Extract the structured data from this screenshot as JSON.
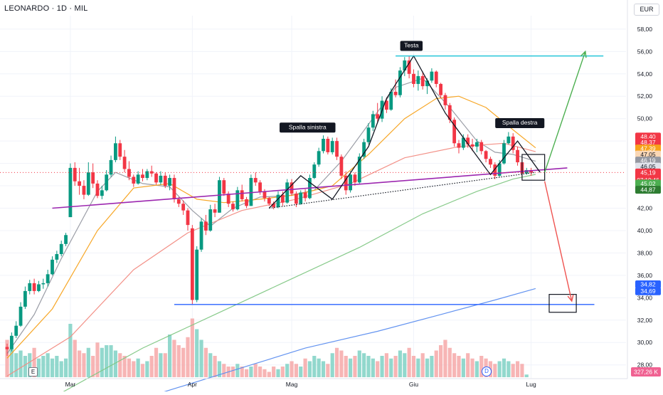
{
  "header": {
    "symbol_title": "LEONARDO · 1D · MIL",
    "currency": "EUR"
  },
  "badges": {
    "earnings": "E",
    "dividend": "D",
    "volume_scale": "E"
  },
  "chart_data": {
    "type": "candlestick",
    "ylim": [
      26.9,
      59.2
    ],
    "y_ticks": [
      28,
      30,
      32,
      34,
      36,
      38,
      40,
      42,
      44,
      46,
      48,
      50,
      52,
      54,
      56,
      58
    ],
    "x_ticks": [
      {
        "label": "Mar",
        "bar": 14
      },
      {
        "label": "Apr",
        "bar": 41
      },
      {
        "label": "Mag",
        "bar": 63
      },
      {
        "label": "Giu",
        "bar": 90
      },
      {
        "label": "Lug",
        "bar": 116
      }
    ],
    "candles": [
      [
        29.6,
        29.9,
        28.8,
        29.4
      ],
      [
        29.4,
        30.9,
        29.2,
        30.6
      ],
      [
        30.6,
        31.9,
        30.4,
        31.5
      ],
      [
        31.5,
        33.6,
        31.4,
        33.2
      ],
      [
        33.2,
        35.0,
        33.0,
        34.6
      ],
      [
        34.6,
        35.6,
        34.3,
        35.3
      ],
      [
        35.3,
        35.7,
        34.3,
        34.6
      ],
      [
        34.6,
        35.5,
        34.5,
        35.2
      ],
      [
        35.2,
        35.7,
        34.8,
        35.3
      ],
      [
        35.3,
        36.5,
        35.0,
        36.1
      ],
      [
        36.1,
        37.7,
        36.0,
        37.4
      ],
      [
        37.4,
        38.2,
        37.1,
        37.9
      ],
      [
        37.9,
        39.1,
        37.7,
        38.8
      ],
      [
        38.8,
        39.8,
        38.6,
        39.6
      ],
      [
        41.2,
        46.0,
        41.5,
        45.6
      ],
      [
        45.6,
        46.1,
        44.0,
        44.4
      ],
      [
        44.4,
        45.6,
        43.2,
        44.0
      ],
      [
        44.0,
        44.5,
        42.8,
        43.2
      ],
      [
        43.2,
        46.1,
        43.1,
        45.2
      ],
      [
        45.2,
        46.0,
        43.8,
        44.2
      ],
      [
        44.2,
        44.5,
        42.9,
        43.1
      ],
      [
        43.1,
        44.0,
        42.8,
        43.6
      ],
      [
        43.6,
        45.4,
        43.5,
        45.0
      ],
      [
        45.0,
        46.7,
        44.8,
        46.3
      ],
      [
        46.3,
        48.4,
        46.1,
        47.8
      ],
      [
        47.8,
        48.1,
        46.3,
        46.6
      ],
      [
        46.6,
        47.2,
        45.2,
        45.5
      ],
      [
        45.5,
        46.2,
        44.5,
        44.8
      ],
      [
        44.8,
        45.0,
        43.9,
        44.2
      ],
      [
        44.2,
        45.3,
        44.1,
        45.0
      ],
      [
        45.0,
        45.5,
        44.4,
        44.7
      ],
      [
        44.7,
        45.5,
        44.5,
        45.3
      ],
      [
        45.3,
        45.8,
        44.8,
        45.1
      ],
      [
        45.1,
        45.2,
        44.1,
        44.3
      ],
      [
        44.3,
        45.3,
        44.1,
        44.9
      ],
      [
        44.9,
        45.2,
        43.8,
        44.0
      ],
      [
        44.0,
        45.0,
        43.6,
        44.7
      ],
      [
        44.7,
        45.0,
        42.5,
        42.8
      ],
      [
        42.8,
        43.0,
        42.1,
        42.4
      ],
      [
        42.4,
        42.7,
        41.4,
        41.8
      ],
      [
        41.8,
        42.0,
        40.0,
        40.5
      ],
      [
        40.2,
        40.5,
        33.4,
        33.8
      ],
      [
        33.8,
        38.6,
        33.6,
        38.3
      ],
      [
        38.3,
        41.1,
        38.1,
        40.8
      ],
      [
        40.8,
        41.4,
        39.6,
        40.0
      ],
      [
        40.0,
        42.3,
        39.9,
        41.9
      ],
      [
        41.9,
        42.4,
        41.2,
        41.6
      ],
      [
        41.6,
        44.8,
        41.6,
        44.5
      ],
      [
        44.5,
        44.7,
        43.1,
        43.3
      ],
      [
        43.3,
        43.5,
        42.1,
        42.4
      ],
      [
        42.4,
        42.6,
        41.7,
        41.9
      ],
      [
        41.9,
        43.9,
        41.8,
        43.6
      ],
      [
        43.6,
        44.1,
        42.6,
        42.8
      ],
      [
        42.8,
        43.0,
        42.0,
        42.2
      ],
      [
        42.2,
        45.0,
        42.2,
        44.7
      ],
      [
        44.7,
        45.2,
        44.0,
        44.3
      ],
      [
        44.3,
        44.5,
        43.2,
        43.5
      ],
      [
        43.5,
        43.7,
        42.6,
        42.9
      ],
      [
        42.9,
        43.0,
        42.2,
        42.4
      ],
      [
        42.4,
        42.6,
        41.9,
        42.1
      ],
      [
        42.1,
        43.5,
        42.0,
        43.2
      ],
      [
        43.2,
        43.5,
        42.2,
        42.5
      ],
      [
        42.5,
        44.6,
        42.4,
        44.3
      ],
      [
        44.3,
        44.6,
        43.1,
        43.3
      ],
      [
        43.3,
        43.5,
        42.1,
        42.4
      ],
      [
        42.4,
        43.6,
        42.3,
        43.4
      ],
      [
        43.4,
        43.7,
        42.6,
        42.9
      ],
      [
        42.9,
        45.0,
        42.8,
        44.7
      ],
      [
        44.7,
        46.1,
        44.6,
        45.9
      ],
      [
        45.9,
        47.4,
        45.7,
        47.1
      ],
      [
        47.1,
        48.5,
        46.9,
        48.2
      ],
      [
        48.2,
        48.4,
        46.8,
        47.0
      ],
      [
        47.0,
        48.3,
        46.8,
        48.0
      ],
      [
        48.0,
        48.3,
        46.3,
        46.6
      ],
      [
        46.6,
        46.8,
        44.6,
        44.9
      ],
      [
        44.9,
        45.3,
        43.2,
        43.6
      ],
      [
        43.6,
        45.3,
        43.4,
        45.0
      ],
      [
        45.0,
        45.2,
        44.0,
        44.3
      ],
      [
        44.3,
        46.9,
        44.2,
        46.6
      ],
      [
        46.6,
        48.2,
        46.4,
        47.9
      ],
      [
        47.9,
        49.6,
        47.7,
        49.2
      ],
      [
        49.2,
        50.7,
        48.9,
        50.4
      ],
      [
        50.4,
        51.4,
        49.7,
        50.0
      ],
      [
        50.0,
        52.0,
        49.7,
        51.6
      ],
      [
        51.6,
        51.9,
        50.5,
        50.8
      ],
      [
        50.8,
        52.7,
        50.7,
        52.4
      ],
      [
        52.4,
        53.5,
        51.9,
        52.1
      ],
      [
        52.1,
        54.6,
        51.9,
        54.3
      ],
      [
        54.3,
        55.5,
        53.8,
        55.2
      ],
      [
        55.2,
        55.6,
        53.6,
        54.0
      ],
      [
        54.0,
        54.4,
        52.8,
        53.1
      ],
      [
        53.1,
        54.3,
        52.5,
        53.8
      ],
      [
        53.8,
        54.2,
        52.6,
        52.9
      ],
      [
        52.9,
        53.6,
        52.2,
        53.4
      ],
      [
        53.4,
        54.5,
        53.2,
        54.2
      ],
      [
        54.2,
        54.3,
        52.8,
        53.1
      ],
      [
        53.1,
        53.2,
        51.8,
        52.1
      ],
      [
        52.1,
        52.3,
        50.8,
        51.2
      ],
      [
        51.2,
        51.4,
        49.6,
        49.9
      ],
      [
        49.9,
        50.1,
        47.5,
        47.8
      ],
      [
        47.8,
        48.1,
        46.9,
        47.4
      ],
      [
        47.4,
        48.6,
        47.2,
        48.3
      ],
      [
        48.3,
        48.6,
        47.4,
        47.7
      ],
      [
        47.7,
        48.2,
        47.1,
        47.5
      ],
      [
        47.5,
        48.2,
        47.0,
        47.9
      ],
      [
        47.9,
        48.1,
        46.8,
        47.1
      ],
      [
        47.1,
        47.2,
        46.1,
        46.4
      ],
      [
        46.4,
        46.6,
        45.6,
        45.9
      ],
      [
        45.9,
        46.1,
        44.6,
        44.9
      ],
      [
        44.9,
        46.3,
        44.8,
        46.0
      ],
      [
        46.0,
        48.1,
        45.9,
        47.8
      ],
      [
        47.8,
        48.8,
        47.7,
        48.4
      ],
      [
        48.4,
        48.7,
        46.9,
        47.2
      ],
      [
        47.2,
        47.5,
        45.8,
        46.1
      ],
      [
        46.1,
        46.4,
        44.8,
        45.1
      ],
      [
        45.1,
        45.6,
        45.0,
        45.4
      ],
      [
        45.4,
        45.6,
        44.9,
        45.19
      ]
    ],
    "ma_overlays": [
      {
        "color": "#9598a1",
        "values": [
          [
            0,
            29.0
          ],
          [
            6,
            32.5
          ],
          [
            12,
            37.5
          ],
          [
            16,
            40.5
          ],
          [
            20,
            43.5
          ],
          [
            24,
            45.2
          ],
          [
            30,
            44.2
          ],
          [
            36,
            43.9
          ],
          [
            41,
            41.8
          ],
          [
            45,
            40.4
          ],
          [
            50,
            42.0
          ],
          [
            56,
            43.0
          ],
          [
            62,
            43.1
          ],
          [
            68,
            43.6
          ],
          [
            74,
            46.2
          ],
          [
            80,
            49.5
          ],
          [
            86,
            52.8
          ],
          [
            92,
            53.6
          ],
          [
            98,
            51.0
          ],
          [
            104,
            48.0
          ],
          [
            108,
            47.0
          ],
          [
            112,
            46.8
          ],
          [
            117,
            46.19
          ]
        ]
      },
      {
        "color": "#f7a21b",
        "values": [
          [
            0,
            28.6
          ],
          [
            10,
            33.0
          ],
          [
            20,
            40.0
          ],
          [
            28,
            43.8
          ],
          [
            36,
            44.2
          ],
          [
            42,
            42.8
          ],
          [
            48,
            42.5
          ],
          [
            56,
            42.8
          ],
          [
            64,
            43.2
          ],
          [
            72,
            44.0
          ],
          [
            80,
            46.8
          ],
          [
            88,
            50.0
          ],
          [
            95,
            51.8
          ],
          [
            100,
            52.0
          ],
          [
            106,
            51.0
          ],
          [
            112,
            49.0
          ],
          [
            117,
            47.39
          ]
        ]
      },
      {
        "color": "#f28b82",
        "values": [
          [
            0,
            27.0
          ],
          [
            14,
            30.5
          ],
          [
            28,
            36.5
          ],
          [
            40,
            39.8
          ],
          [
            52,
            41.8
          ],
          [
            64,
            42.8
          ],
          [
            76,
            44.2
          ],
          [
            88,
            46.5
          ],
          [
            100,
            47.5
          ],
          [
            110,
            47.8
          ],
          [
            117,
            47.05
          ]
        ]
      },
      {
        "color": "#81c784",
        "values": [
          [
            12,
            25.5
          ],
          [
            30,
            29.5
          ],
          [
            46,
            32.5
          ],
          [
            62,
            35.5
          ],
          [
            78,
            38.5
          ],
          [
            92,
            41.5
          ],
          [
            104,
            43.5
          ],
          [
            112,
            44.6
          ],
          [
            117,
            45.02
          ]
        ]
      },
      {
        "color": "#5b8def",
        "values": [
          [
            34,
            25.5
          ],
          [
            50,
            27.5
          ],
          [
            66,
            29.5
          ],
          [
            82,
            31.0
          ],
          [
            96,
            32.5
          ],
          [
            108,
            33.8
          ],
          [
            117,
            34.82
          ]
        ]
      }
    ],
    "volumes": [
      0.7,
      0.6,
      0.45,
      0.5,
      0.4,
      0.45,
      0.55,
      0.35,
      0.4,
      0.45,
      0.35,
      0.4,
      0.3,
      0.35,
      1.0,
      0.7,
      0.5,
      0.45,
      0.55,
      0.4,
      0.65,
      0.55,
      0.6,
      0.6,
      0.5,
      0.45,
      0.4,
      0.35,
      0.3,
      0.35,
      0.25,
      0.3,
      0.4,
      0.55,
      0.45,
      0.45,
      0.8,
      0.7,
      0.6,
      0.55,
      0.75,
      1.1,
      0.9,
      0.7,
      0.55,
      0.45,
      0.4,
      0.3,
      0.25,
      0.2,
      0.2,
      0.25,
      0.2,
      0.15,
      0.2,
      0.25,
      0.2,
      0.15,
      0.1,
      0.2,
      0.15,
      0.2,
      0.25,
      0.3,
      0.25,
      0.2,
      0.35,
      0.3,
      0.4,
      0.35,
      0.3,
      0.25,
      0.45,
      0.55,
      0.5,
      0.4,
      0.35,
      0.4,
      0.5,
      0.45,
      0.4,
      0.35,
      0.3,
      0.4,
      0.45,
      0.35,
      0.4,
      0.5,
      0.45,
      0.55,
      0.4,
      0.35,
      0.45,
      0.35,
      0.4,
      0.5,
      0.6,
      0.7,
      0.55,
      0.45,
      0.4,
      0.35,
      0.45,
      0.35,
      0.3,
      0.4,
      0.35,
      0.3,
      0.25,
      0.3,
      0.35,
      0.3,
      0.25,
      0.3,
      0.25,
      0.05
    ],
    "drawings": {
      "neckline": {
        "color": "#9c27b0",
        "from": [
          10,
          42.0
        ],
        "to": [
          124,
          45.6
        ]
      },
      "dotted_neckline": {
        "from": [
          58,
          42.0
        ],
        "to": [
          117,
          45.2
        ]
      },
      "pattern_path": [
        [
          58,
          42.0
        ],
        [
          65,
          44.9
        ],
        [
          72,
          42.8
        ],
        [
          80,
          47.5
        ],
        [
          84,
          51.8
        ],
        [
          90,
          55.6
        ],
        [
          97,
          50.5
        ],
        [
          107,
          45.0
        ],
        [
          113,
          48.0
        ],
        [
          118,
          45.2
        ]
      ],
      "target_top": {
        "color": "#26c6da",
        "from": [
          86,
          55.6
        ],
        "to": [
          132,
          55.6
        ]
      },
      "support_bottom": {
        "color": "#2962ff",
        "from": [
          37,
          33.4
        ],
        "to": [
          130,
          33.4
        ]
      },
      "box_breakout": {
        "bar0": 114,
        "bar1": 119,
        "y_top": 46.8,
        "y_bottom": 44.5
      },
      "box_target": {
        "bar0": 120,
        "bar1": 126,
        "y_top": 34.3,
        "y_bottom": 32.7
      },
      "arrow_up": {
        "color": "#4caf50",
        "from": [
          119,
          45.2
        ],
        "to": [
          128,
          56.0
        ]
      },
      "arrow_down": {
        "color": "#ef5350",
        "from": [
          119,
          44.4
        ],
        "to": [
          125,
          33.7
        ]
      }
    },
    "annotations": [
      {
        "text": "Testa",
        "bar": 89.5,
        "y": 56.5
      },
      {
        "text": "Spalla sinistra",
        "bar": 66.5,
        "y": 49.2
      },
      {
        "text": "Spalla destra",
        "bar": 113.5,
        "y": 49.6
      }
    ],
    "price_labels": [
      {
        "text": "48,40",
        "y": 48.4,
        "bg": "#f23645",
        "fg": "#ffffff"
      },
      {
        "text": "48,37",
        "y": 47.87,
        "bg": "#f23645",
        "fg": "#ffffff"
      },
      {
        "text": "47,39",
        "y": 47.33,
        "bg": "#f7a21b",
        "fg": "#ffffff"
      },
      {
        "text": "47,05",
        "y": 46.79,
        "bg": "#fad7b5",
        "fg": "#131722"
      },
      {
        "text": "46,19",
        "y": 46.25,
        "bg": "#9598a1",
        "fg": "#ffffff"
      },
      {
        "text": "46,05",
        "y": 45.71,
        "bg": "#e0e3eb",
        "fg": "#131722"
      },
      {
        "text": "45,19",
        "y": 45.19,
        "bg": "#f23645",
        "fg": "#ffffff",
        "sub": "07:10:46"
      },
      {
        "text": "45,02",
        "y": 44.2,
        "bg": "#4caf50",
        "fg": "#ffffff"
      },
      {
        "text": "44,87",
        "y": 43.65,
        "bg": "#2e7d32",
        "fg": "#ffffff"
      },
      {
        "text": "34,82",
        "y": 35.2,
        "bg": "#2962ff",
        "fg": "#ffffff"
      },
      {
        "text": "34,69",
        "y": 34.58,
        "bg": "#2962ff",
        "fg": "#ffffff"
      }
    ],
    "volume_label": "327,26 K"
  }
}
